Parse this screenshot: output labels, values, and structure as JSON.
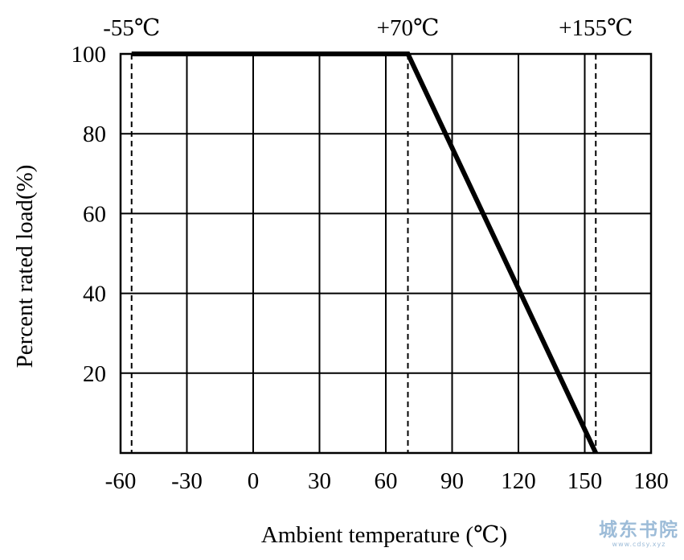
{
  "chart_data": {
    "type": "line",
    "title": "",
    "xlabel": "Ambient temperature (℃)",
    "ylabel": "Percent rated load(%)",
    "xlim": [
      -60,
      180
    ],
    "ylim": [
      0,
      100
    ],
    "x_ticks": [
      -60,
      -30,
      0,
      30,
      60,
      90,
      120,
      150,
      180
    ],
    "x_tick_labels": [
      "-60",
      "-30",
      "0",
      "30",
      "60",
      "90",
      "120",
      "150",
      "180"
    ],
    "y_ticks": [
      20,
      40,
      60,
      80,
      100
    ],
    "y_tick_labels": [
      "20",
      "40",
      "60",
      "80",
      "100"
    ],
    "grid": true,
    "series": [
      {
        "x": [
          -55,
          70,
          155
        ],
        "y": [
          100,
          100,
          0
        ]
      }
    ],
    "annotations": [
      {
        "x": -55,
        "label": "-55℃"
      },
      {
        "x": 70,
        "label": "+70℃"
      },
      {
        "x": 155,
        "label": "+155℃"
      }
    ]
  },
  "watermark": {
    "text": "城东书院",
    "subtext": "www.cdsy.xyz"
  }
}
